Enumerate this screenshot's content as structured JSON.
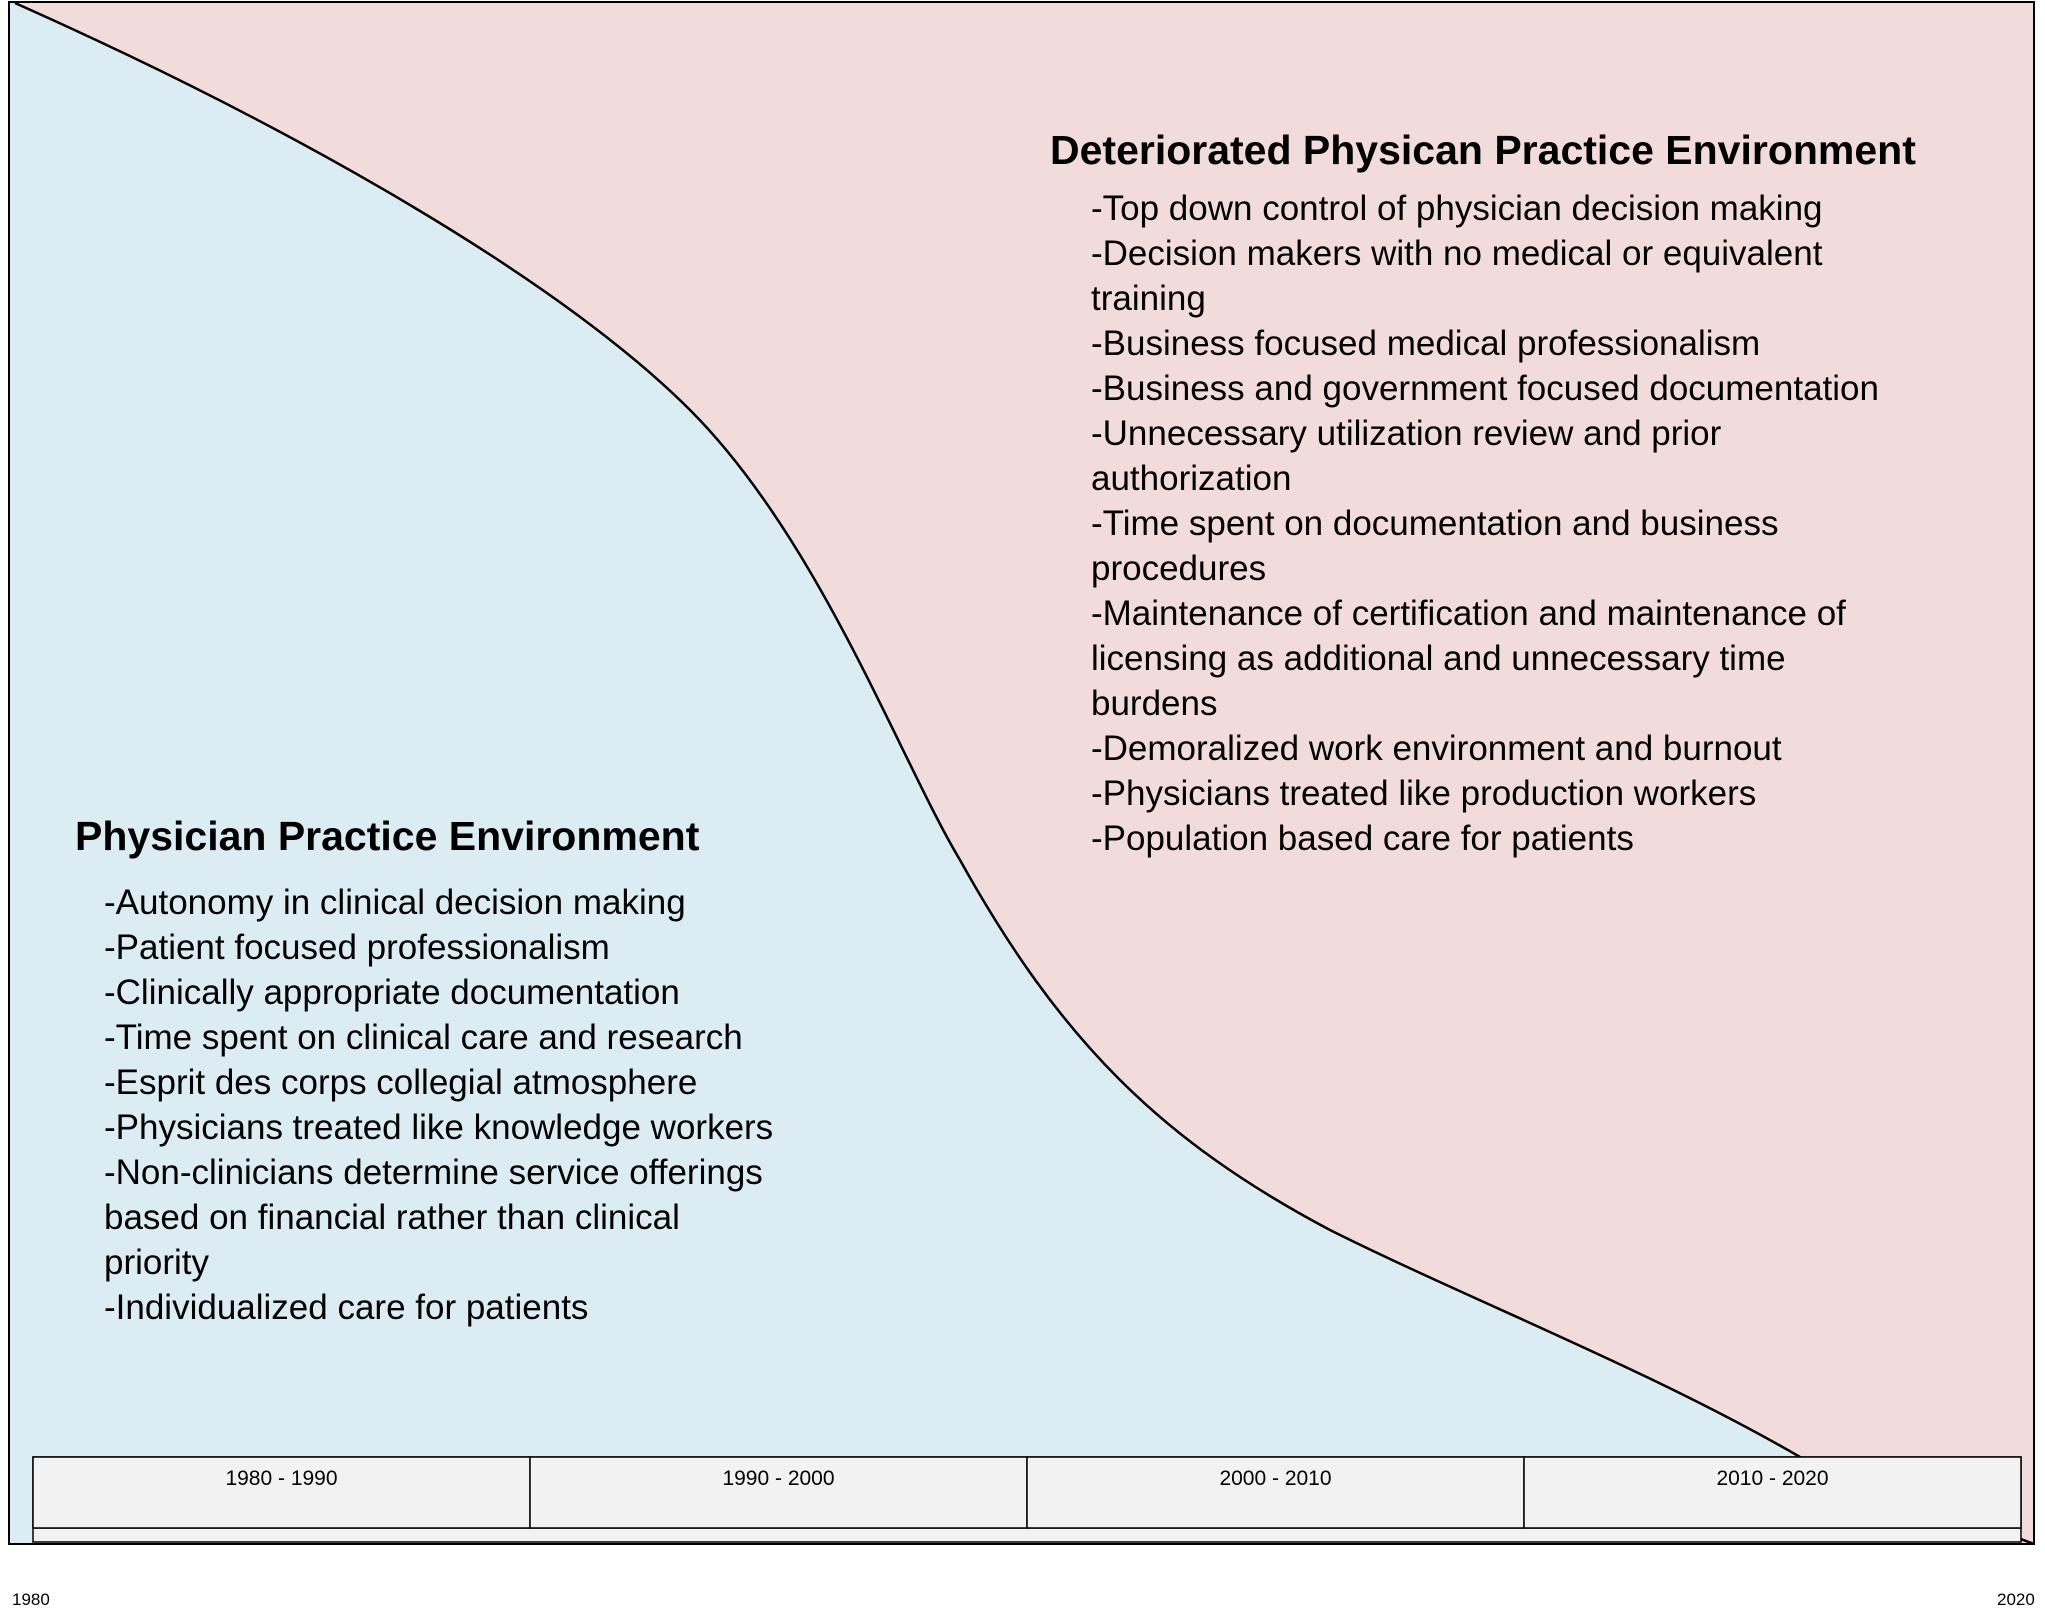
{
  "colors": {
    "old_era_fill": "#dbecf3",
    "new_era_fill": "#f2dbdb",
    "timeline_fill": "#f2f2f2",
    "line": "#000000"
  },
  "timeline": {
    "periods": [
      "1980 - 1990",
      "1990 - 2000",
      "2000 - 2010",
      "2010 - 2020"
    ],
    "start_label": "1980",
    "end_label": "2020"
  },
  "left_panel": {
    "title": "Physician Practice Environment",
    "items": [
      "-Autonomy in clinical decision making",
      "-Patient focused professionalism",
      "-Clinically appropriate documentation",
      "-Time spent on clinical care and research",
      "-Esprit des corps collegial atmosphere",
      "-Physicians treated like knowledge workers",
      "-Non-clinicians determine service offerings based on financial rather than clinical priority",
      "-Individualized care for patients"
    ]
  },
  "right_panel": {
    "title": "Deteriorated Physican Practice Environment",
    "items": [
      "-Top down control of physician decision making",
      "-Decision makers with no medical or equivalent training",
      "-Business focused medical professionalism",
      "-Business and government focused documentation",
      "-Unnecessary utilization review and prior authorization",
      "-Time spent on documentation and business procedures",
      "-Maintenance of certification and maintenance of licensing as additional and unnecessary time burdens",
      "-Demoralized work environment and burnout",
      "-Physicians treated like production workers",
      "-Population based care for patients"
    ]
  }
}
